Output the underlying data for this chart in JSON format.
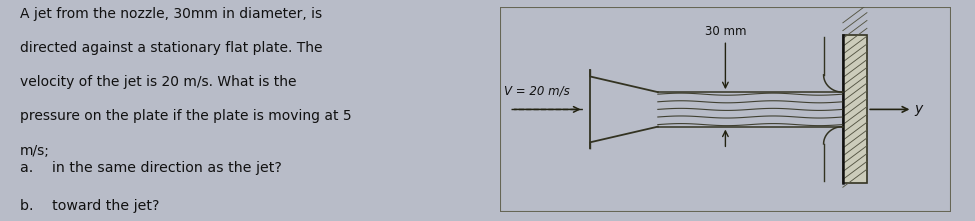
{
  "bg_color": "#b8bcc8",
  "text_bg_color": "#c8cad4",
  "main_text_line1": "A jet from the nozzle, 30mm in diameter, is",
  "main_text_line2": "directed against a stationary flat plate. The",
  "main_text_line3": "velocity of the jet is 20 m/s. What is the",
  "main_text_line4": "pressure on the plate if the plate is moving at 5",
  "main_text_line5": "m/s;",
  "sub_a": "a.  in the same direction as the jet?",
  "sub_b": "b.  toward the jet?",
  "label_30mm": "30 mm",
  "label_v": "V = 20 m/s",
  "label_y": "y",
  "diagram_bg": "#9e9080",
  "text_color": "#111111",
  "font_size_main": 10.0,
  "font_size_sub": 10.2,
  "font_size_label": 8.0,
  "plate_color": "#ccccbb",
  "hatch_color": "#555544",
  "jet_color": "#333322",
  "arrow_color": "#222211"
}
